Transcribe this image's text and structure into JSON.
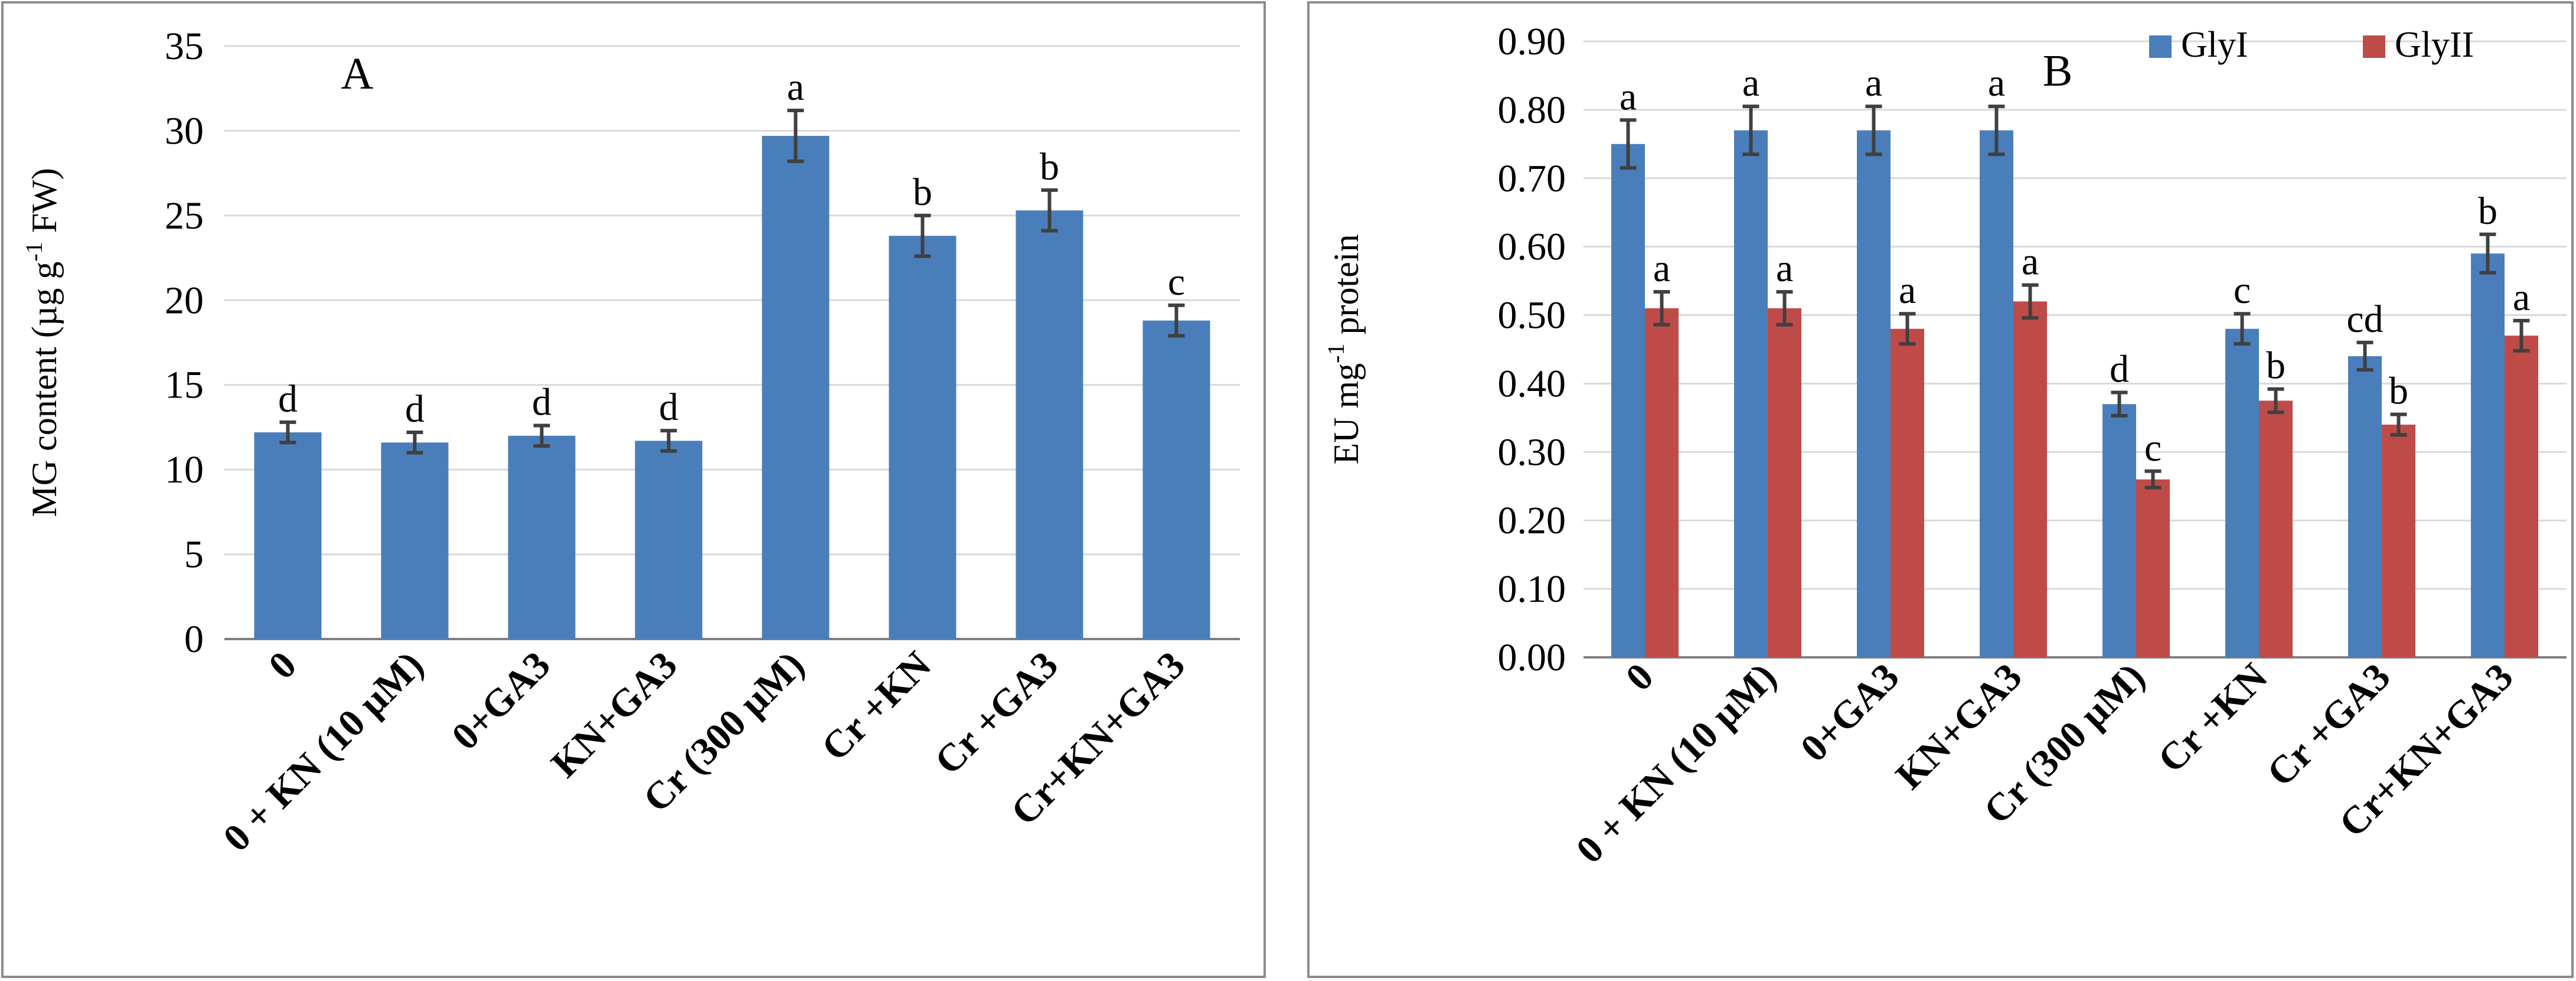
{
  "chart_data": [
    {
      "type": "bar",
      "panel_label": "A",
      "title": "",
      "xlabel": "",
      "ylabel": {
        "pre": "MG content (µg g",
        "sup": "-1",
        "post": " FW)"
      },
      "ylim": [
        0,
        35
      ],
      "yticks": [
        0,
        5,
        10,
        15,
        20,
        25,
        30,
        35
      ],
      "ytick_labels": [
        "0",
        "5",
        "10",
        "15",
        "20",
        "25",
        "30",
        "35"
      ],
      "grid": true,
      "categories": [
        "0",
        "0 + KN (10 µM)",
        "0+GA3",
        "KN+GA3",
        "Cr (300 µM)",
        "Cr +KN",
        "Cr +GA3",
        "Cr+KN+GA3"
      ],
      "series": [
        {
          "name": "MG content",
          "color": "#4a7ebb",
          "values": [
            12.2,
            11.6,
            12.0,
            11.7,
            29.7,
            23.8,
            25.3,
            18.8
          ],
          "errors": [
            0.6,
            0.6,
            0.6,
            0.6,
            1.5,
            1.2,
            1.2,
            0.9
          ],
          "labels": [
            "d",
            "d",
            "d",
            "d",
            "a",
            "b",
            "b",
            "c"
          ]
        }
      ]
    },
    {
      "type": "bar",
      "panel_label": "B",
      "title": "",
      "xlabel": "",
      "ylabel": {
        "pre": "EU mg",
        "sup": "-1",
        "post": " protein"
      },
      "ylim": [
        0,
        0.9
      ],
      "yticks": [
        0,
        0.1,
        0.2,
        0.3,
        0.4,
        0.5,
        0.6,
        0.7,
        0.8,
        0.9
      ],
      "ytick_labels": [
        "0.00",
        "0.10",
        "0.20",
        "0.30",
        "0.40",
        "0.50",
        "0.60",
        "0.70",
        "0.80",
        "0.90"
      ],
      "grid": true,
      "legend_position": "top-right",
      "categories": [
        "0",
        "0 + KN (10 µM)",
        "0+GA3",
        "KN+GA3",
        "Cr (300 µM)",
        "Cr +KN",
        "Cr +GA3",
        "Cr+KN+GA3"
      ],
      "series": [
        {
          "name": "GlyI",
          "color": "#4a7ebb",
          "values": [
            0.75,
            0.77,
            0.77,
            0.77,
            0.37,
            0.48,
            0.44,
            0.59
          ],
          "errors": [
            0.035,
            0.035,
            0.035,
            0.035,
            0.017,
            0.022,
            0.02,
            0.028
          ],
          "labels": [
            "a",
            "a",
            "a",
            "a",
            "d",
            "c",
            "cd",
            "b"
          ]
        },
        {
          "name": "GlyII",
          "color": "#be4b48",
          "values": [
            0.51,
            0.51,
            0.48,
            0.52,
            0.26,
            0.375,
            0.34,
            0.47
          ],
          "errors": [
            0.024,
            0.024,
            0.022,
            0.024,
            0.012,
            0.017,
            0.015,
            0.022
          ],
          "labels": [
            "a",
            "a",
            "a",
            "a",
            "c",
            "b",
            "b",
            "a"
          ]
        }
      ]
    }
  ]
}
